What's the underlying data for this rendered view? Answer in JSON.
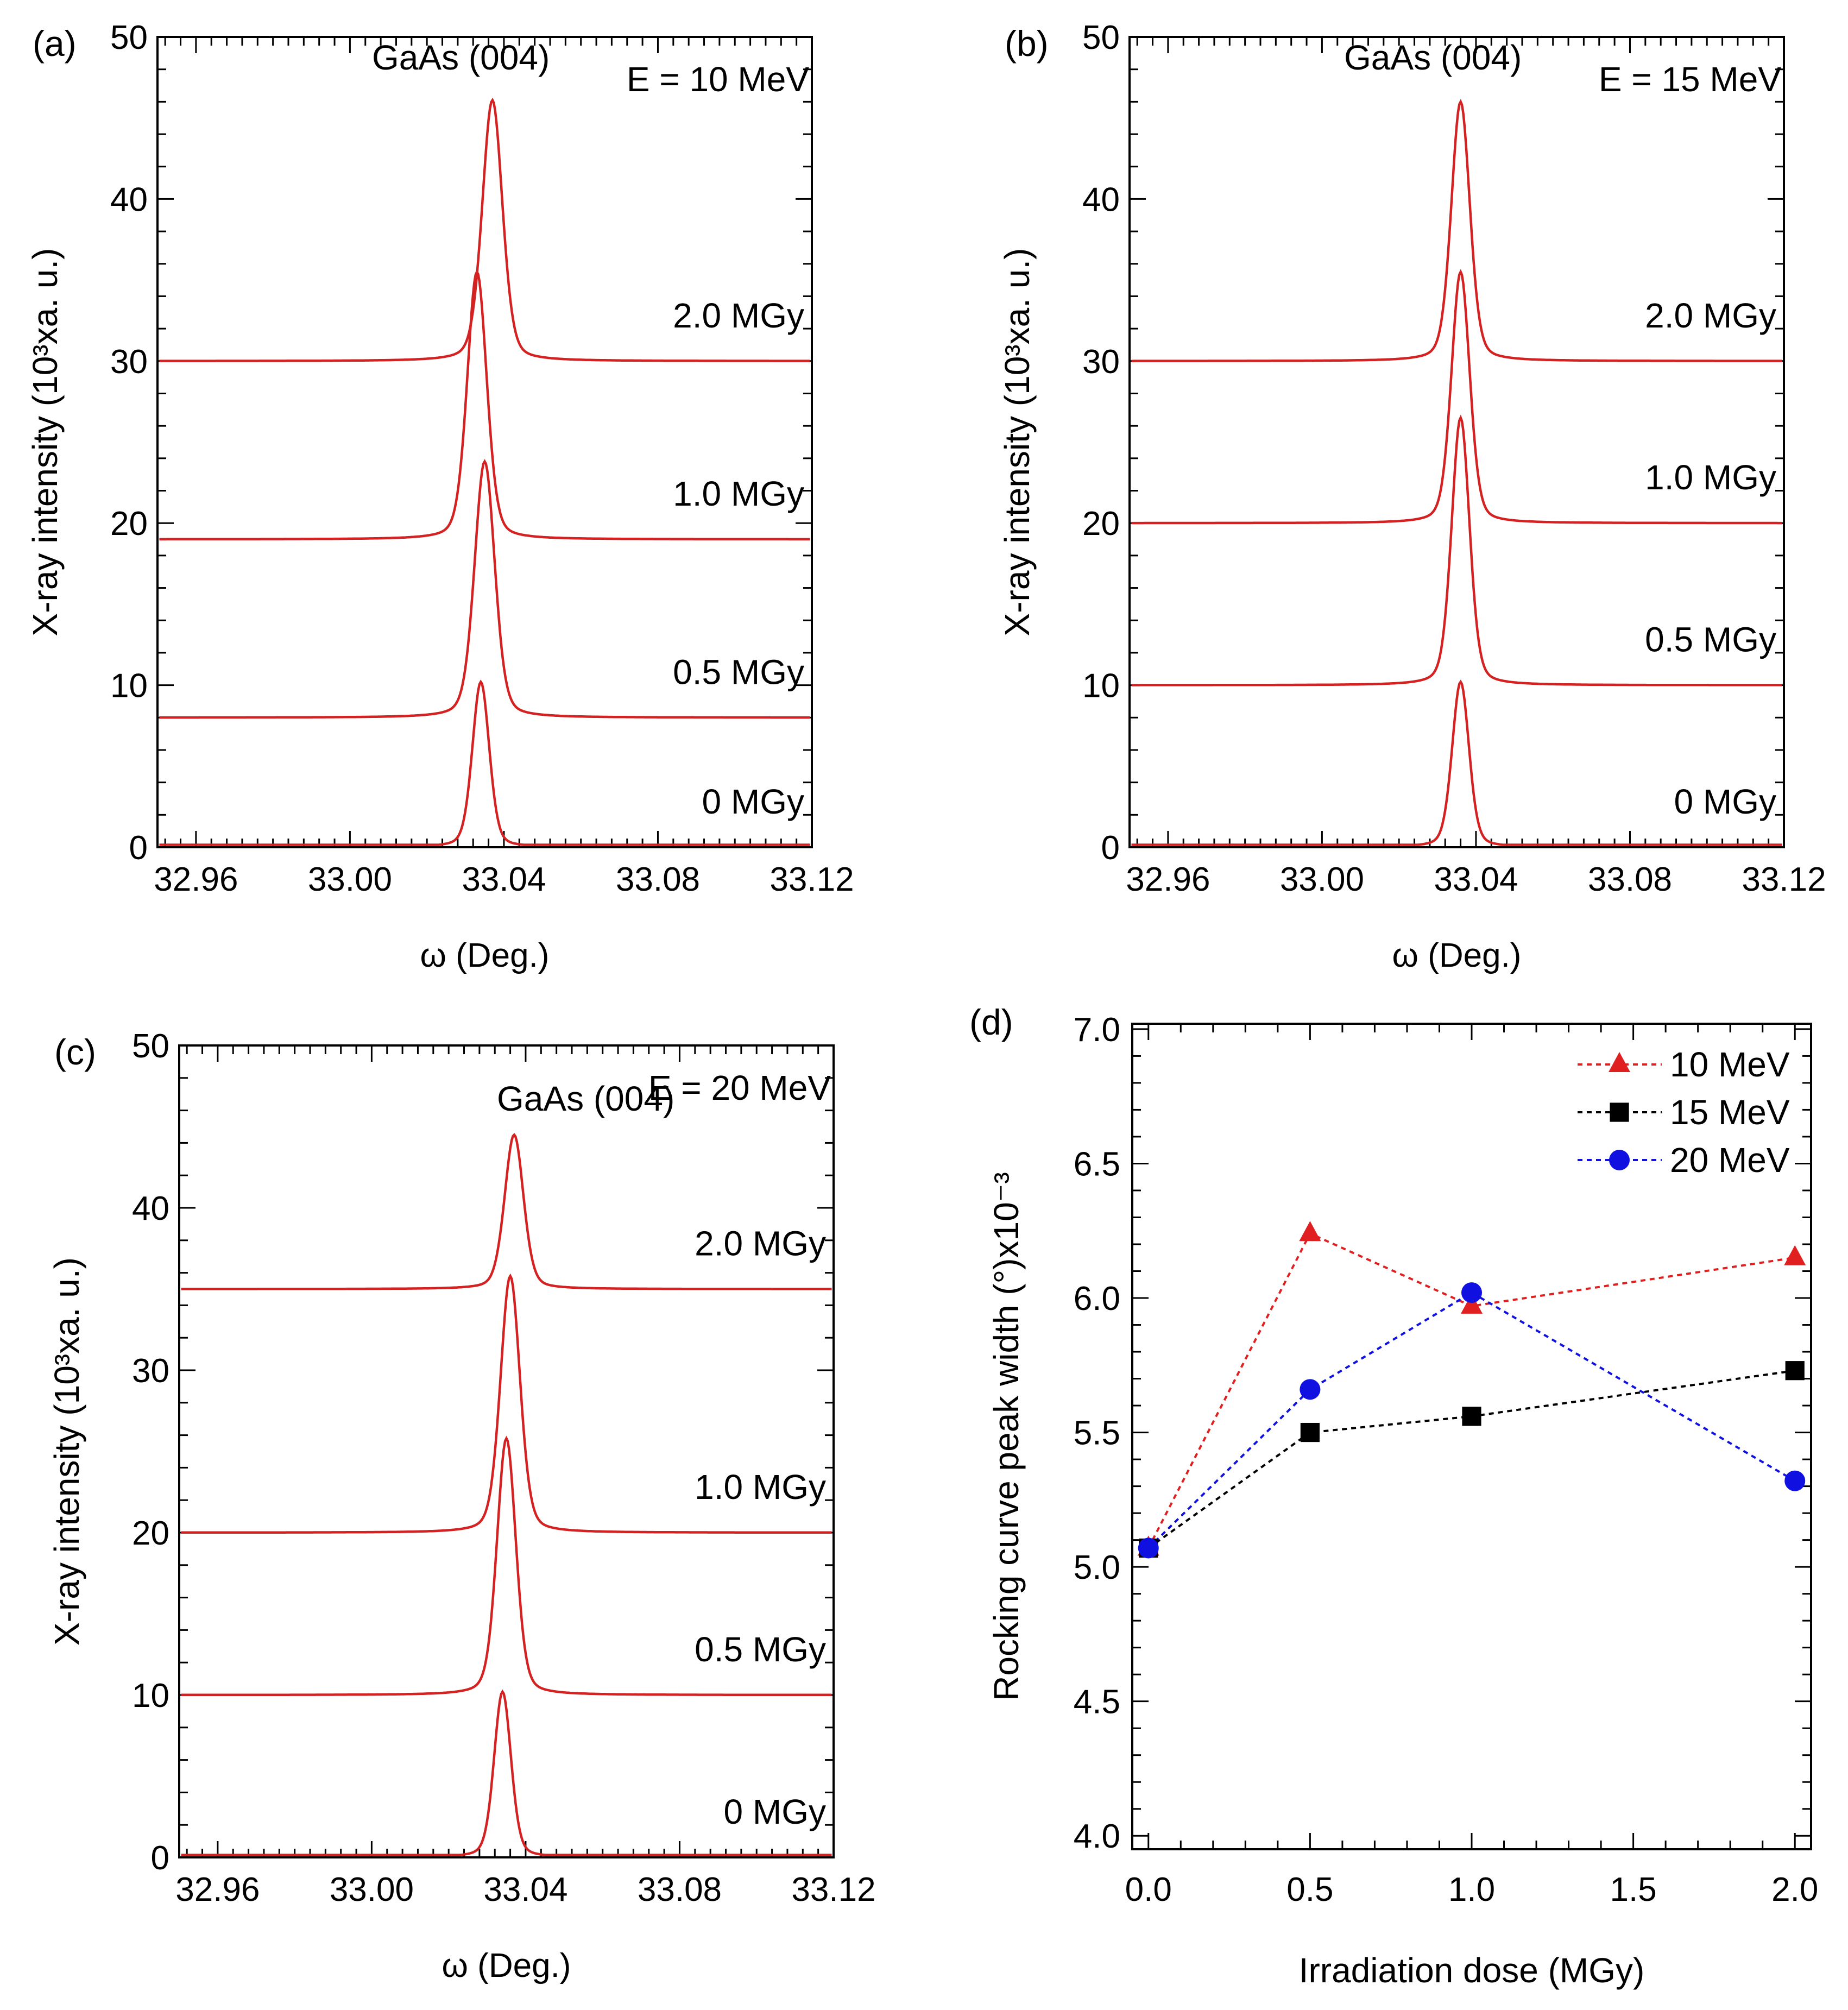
{
  "chart_data": [
    {
      "id": "a",
      "type": "line",
      "panel_label": "(a)",
      "sample_label": "GaAs (004)",
      "energy_label": "E = 10 MeV",
      "xlabel": "ω (Deg.)",
      "ylabel": "X-ray intensity (10³xa. u.)",
      "xlim": [
        32.95,
        33.12
      ],
      "ylim": [
        0,
        50
      ],
      "x_ticks": [
        32.96,
        33.0,
        33.04,
        33.08,
        33.12
      ],
      "x_tick_labels": [
        "32.96",
        "33.00",
        "33.04",
        "33.08",
        "33.12"
      ],
      "y_ticks": [
        0,
        10,
        20,
        30,
        40,
        50
      ],
      "y_tick_labels": [
        "0",
        "10",
        "20",
        "30",
        "40",
        "50"
      ],
      "series": [
        {
          "name": "0 MGy",
          "offset": 0,
          "peak_x": 33.034,
          "peak_height": 10.2,
          "fwhm": 0.0052
        },
        {
          "name": "0.5 MGy",
          "offset": 8,
          "peak_x": 33.035,
          "peak_height": 15.8,
          "fwhm": 0.0062
        },
        {
          "name": "1.0 MGy",
          "offset": 19,
          "peak_x": 33.033,
          "peak_height": 16.5,
          "fwhm": 0.006
        },
        {
          "name": "2.0 MGy",
          "offset": 30,
          "peak_x": 33.037,
          "peak_height": 16.1,
          "fwhm": 0.0062
        }
      ],
      "curve_color": "#d42222"
    },
    {
      "id": "b",
      "type": "line",
      "panel_label": "(b)",
      "sample_label": "GaAs (004)",
      "energy_label": "E = 15 MeV",
      "xlabel": "ω (Deg.)",
      "ylabel": "X-ray intensity (10³xa. u.)",
      "xlim": [
        32.95,
        33.12
      ],
      "ylim": [
        0,
        50
      ],
      "x_ticks": [
        32.96,
        33.0,
        33.04,
        33.08,
        33.12
      ],
      "x_tick_labels": [
        "32.96",
        "33.00",
        "33.04",
        "33.08",
        "33.12"
      ],
      "y_ticks": [
        0,
        10,
        20,
        30,
        40,
        50
      ],
      "y_tick_labels": [
        "0",
        "10",
        "20",
        "30",
        "40",
        "50"
      ],
      "series": [
        {
          "name": "0 MGy",
          "offset": 0,
          "peak_x": 33.036,
          "peak_height": 10.2,
          "fwhm": 0.0052
        },
        {
          "name": "0.5 MGy",
          "offset": 10,
          "peak_x": 33.036,
          "peak_height": 16.5,
          "fwhm": 0.0055
        },
        {
          "name": "1.0 MGy",
          "offset": 20,
          "peak_x": 33.036,
          "peak_height": 15.5,
          "fwhm": 0.0056
        },
        {
          "name": "2.0 MGy",
          "offset": 30,
          "peak_x": 33.036,
          "peak_height": 16.0,
          "fwhm": 0.0057
        }
      ],
      "curve_color": "#d42222"
    },
    {
      "id": "c",
      "type": "line",
      "panel_label": "(c)",
      "sample_label": "GaAs (004)",
      "energy_label": "E = 20 MeV",
      "xlabel": "ω (Deg.)",
      "ylabel": "X-ray intensity (10³xa. u.)",
      "xlim": [
        32.95,
        33.12
      ],
      "ylim": [
        0,
        50
      ],
      "x_ticks": [
        32.96,
        33.0,
        33.04,
        33.08,
        33.12
      ],
      "x_tick_labels": [
        "32.96",
        "33.00",
        "33.04",
        "33.08",
        "33.12"
      ],
      "y_ticks": [
        0,
        10,
        20,
        30,
        40,
        50
      ],
      "y_tick_labels": [
        "0",
        "10",
        "20",
        "30",
        "40",
        "50"
      ],
      "series": [
        {
          "name": "0 MGy",
          "offset": 0,
          "peak_x": 33.034,
          "peak_height": 10.2,
          "fwhm": 0.0052
        },
        {
          "name": "0.5 MGy",
          "offset": 10,
          "peak_x": 33.035,
          "peak_height": 15.8,
          "fwhm": 0.0058
        },
        {
          "name": "1.0 MGy",
          "offset": 20,
          "peak_x": 33.036,
          "peak_height": 15.8,
          "fwhm": 0.006
        },
        {
          "name": "2.0 MGy",
          "offset": 35,
          "peak_x": 33.037,
          "peak_height": 9.5,
          "fwhm": 0.0058
        }
      ],
      "curve_color": "#d42222"
    },
    {
      "id": "d",
      "type": "scatter",
      "panel_label": "(d)",
      "xlabel": "Irradiation dose (MGy)",
      "ylabel": "Rocking curve peak width (°)x10⁻³",
      "xlim": [
        -0.05,
        2.05
      ],
      "ylim": [
        3.95,
        7.02
      ],
      "x_ticks": [
        0,
        0.5,
        1.0,
        1.5,
        2.0
      ],
      "x_tick_labels": [
        "0.0",
        "0.5",
        "1.0",
        "1.5",
        "2.0"
      ],
      "y_ticks": [
        4.0,
        4.5,
        5.0,
        5.5,
        6.0,
        6.5,
        7.0
      ],
      "y_tick_labels": [
        "4.0",
        "4.5",
        "5.0",
        "5.5",
        "6.0",
        "6.5",
        "7.0"
      ],
      "x": [
        0.0,
        0.5,
        1.0,
        2.0
      ],
      "series": [
        {
          "name": "10 MeV",
          "marker": "triangle",
          "color": "#e02020",
          "values": [
            5.07,
            6.24,
            5.97,
            6.15
          ]
        },
        {
          "name": "15 MeV",
          "marker": "square",
          "color": "#000000",
          "values": [
            5.07,
            5.5,
            5.56,
            5.73
          ]
        },
        {
          "name": "20 MeV",
          "marker": "circle",
          "color": "#1010e0",
          "values": [
            5.07,
            5.66,
            6.02,
            5.32
          ]
        }
      ],
      "legend_position": "top-right"
    }
  ]
}
